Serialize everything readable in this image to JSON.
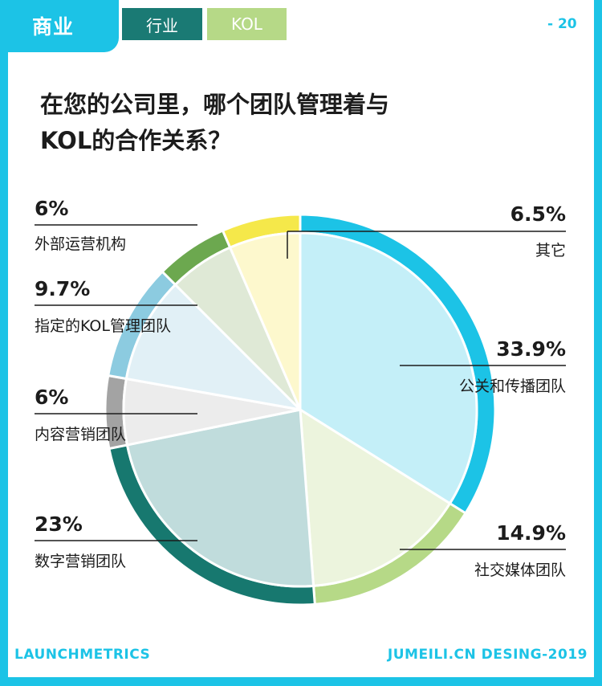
{
  "header": {
    "tab_business": "商业",
    "tab_industry": "行业",
    "tab_kol": "KOL",
    "page_number": "- 20"
  },
  "title_lines": [
    "在您的公司里，哪个团队管理着与",
    "KOL的合作关系？"
  ],
  "footer": {
    "left": "LAUNCHMETRICS",
    "right": "JUMEILI.CN DESING-2019"
  },
  "chart_data": {
    "type": "pie",
    "title": "在您的公司里，哪个团队管理着与KOL的合作关系？",
    "unit": "%",
    "slices": [
      {
        "label": "公关和传播团队",
        "value": 33.9,
        "value_text": "33.9%",
        "inner_color": "#c4eff8",
        "ring_color": "#1cc3e6"
      },
      {
        "label": "社交媒体团队",
        "value": 14.9,
        "value_text": "14.9%",
        "inner_color": "#ecf4dd",
        "ring_color": "#b6d987"
      },
      {
        "label": "数字营销团队",
        "value": 23,
        "value_text": "23%",
        "inner_color": "#c0dcdc",
        "ring_color": "#17786f"
      },
      {
        "label": "内容营销团队",
        "value": 6,
        "value_text": "6%",
        "inner_color": "#ececec",
        "ring_color": "#a3a3a3"
      },
      {
        "label": "指定的KOL管理团队",
        "value": 9.7,
        "value_text": "9.7%",
        "inner_color": "#e1f0f6",
        "ring_color": "#8ccbe0"
      },
      {
        "label": "外部运营机构",
        "value": 6,
        "value_text": "6%",
        "inner_color": "#dfe9d6",
        "ring_color": "#6ca84f"
      },
      {
        "label": "其它",
        "value": 6.5,
        "value_text": "6.5%",
        "inner_color": "#fdf8cd",
        "ring_color": "#f5e84a"
      }
    ]
  }
}
